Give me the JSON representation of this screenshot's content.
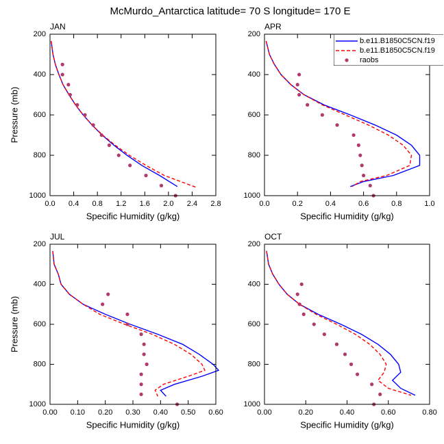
{
  "title": "McMurdo_Antarctica  latitude= 70 S longitude= 170 E",
  "chart_data": [
    {
      "type": "line",
      "title": "JAN",
      "x_label": "Specific Humidity (g/kg)",
      "y_label": "Pressure (mb)",
      "xlim": [
        0,
        2.8
      ],
      "xticks": [
        {
          "value": 0,
          "label": "0.0"
        },
        0.4,
        0.8,
        {
          "value": 1.2,
          "label": "1.2"
        },
        {
          "value": 1.6,
          "label": "1.6"
        },
        {
          "value": 2.0,
          "label": "2.0"
        },
        2.4,
        2.8
      ],
      "ylim": [
        200,
        1000
      ],
      "yticks": [
        200,
        400,
        600,
        800,
        1000
      ],
      "y_reversed": true,
      "series": [
        {
          "color": "#0000ff",
          "dash": "solid",
          "values": [
            0.02,
            0.05,
            0.09,
            0.15,
            0.22,
            0.32,
            0.43,
            0.56,
            0.71,
            0.88,
            1.08,
            1.3,
            1.55,
            1.85,
            2.15
          ],
          "pressure": [
            234,
            300,
            350,
            400,
            450,
            500,
            550,
            600,
            650,
            700,
            750,
            800,
            850,
            900,
            955
          ]
        },
        {
          "color": "#ff0000",
          "dash": "dashed",
          "values": [
            0.02,
            0.05,
            0.09,
            0.15,
            0.22,
            0.32,
            0.43,
            0.56,
            0.71,
            0.89,
            1.1,
            1.34,
            1.62,
            1.93,
            2.48
          ],
          "pressure": [
            234,
            300,
            350,
            400,
            450,
            500,
            550,
            600,
            650,
            700,
            750,
            800,
            850,
            900,
            960
          ]
        },
        {
          "color": "#b03a6e",
          "marker": "dot",
          "values": [
            0.21,
            0.21,
            0.31,
            0.34,
            0.46,
            0.59,
            0.73,
            0.87,
            1.0,
            1.16,
            1.35,
            1.62,
            1.88,
            2.12
          ],
          "pressure": [
            350,
            400,
            450,
            500,
            550,
            600,
            650,
            700,
            750,
            800,
            850,
            900,
            950,
            1000
          ]
        }
      ]
    },
    {
      "type": "line",
      "title": "APR",
      "x_label": "Specific Humidity (g/kg)",
      "xlim": [
        0,
        1.0
      ],
      "xticks": [
        {
          "value": 0,
          "label": "0.0"
        },
        0.2,
        0.4,
        0.6,
        0.8,
        {
          "value": 1.0,
          "label": "1.0"
        }
      ],
      "ylim": [
        200,
        1000
      ],
      "yticks": [
        200,
        400,
        600,
        800,
        1000
      ],
      "y_reversed": true,
      "legend": "upper right",
      "series": [
        {
          "name": "b.e11.B1850C5CN.f19",
          "color": "#0000ff",
          "dash": "solid",
          "values": [
            0.01,
            0.03,
            0.06,
            0.1,
            0.16,
            0.24,
            0.36,
            0.52,
            0.67,
            0.8,
            0.89,
            0.94,
            0.94,
            0.78,
            0.6,
            0.52
          ],
          "pressure": [
            234,
            300,
            350,
            400,
            450,
            500,
            550,
            600,
            650,
            700,
            750,
            800,
            850,
            900,
            930,
            955
          ]
        },
        {
          "name": "b.e11.B1850C5CN.f19",
          "color": "#ff0000",
          "dash": "dashed",
          "values": [
            0.01,
            0.03,
            0.06,
            0.1,
            0.16,
            0.24,
            0.35,
            0.49,
            0.63,
            0.75,
            0.84,
            0.89,
            0.88,
            0.74,
            0.58,
            0.53
          ],
          "pressure": [
            234,
            300,
            350,
            400,
            450,
            500,
            550,
            600,
            650,
            700,
            750,
            800,
            850,
            900,
            930,
            955
          ]
        },
        {
          "name": "raobs",
          "color": "#b03a6e",
          "marker": "dot",
          "values": [
            0.21,
            0.2,
            0.21,
            0.26,
            0.35,
            0.44,
            0.54,
            0.57,
            0.58,
            0.59,
            0.6,
            0.64,
            0.66
          ],
          "pressure": [
            400,
            450,
            500,
            550,
            600,
            650,
            700,
            750,
            800,
            850,
            900,
            950,
            1000
          ]
        }
      ]
    },
    {
      "type": "line",
      "title": "JUL",
      "x_label": "Specific Humidity (g/kg)",
      "y_label": "Pressure (mb)",
      "xlim": [
        0,
        0.6
      ],
      "xticks": [
        {
          "value": 0,
          "label": "0.00"
        },
        {
          "value": 0.1,
          "label": "0.10"
        },
        {
          "value": 0.2,
          "label": "0.20"
        },
        {
          "value": 0.3,
          "label": "0.30"
        },
        {
          "value": 0.4,
          "label": "0.40"
        },
        {
          "value": 0.5,
          "label": "0.50"
        },
        {
          "value": 0.6,
          "label": "0.60"
        }
      ],
      "ylim": [
        200,
        1000
      ],
      "yticks": [
        200,
        400,
        600,
        800,
        1000
      ],
      "y_reversed": true,
      "series": [
        {
          "color": "#0000ff",
          "dash": "solid",
          "values": [
            0.01,
            0.015,
            0.03,
            0.04,
            0.07,
            0.12,
            0.2,
            0.29,
            0.39,
            0.48,
            0.54,
            0.59,
            0.61,
            0.55,
            0.45,
            0.4,
            0.42
          ],
          "pressure": [
            234,
            300,
            350,
            400,
            450,
            500,
            550,
            600,
            650,
            700,
            750,
            800,
            830,
            860,
            900,
            930,
            960
          ]
        },
        {
          "color": "#ff0000",
          "dash": "dashed",
          "values": [
            0.01,
            0.015,
            0.03,
            0.04,
            0.07,
            0.12,
            0.18,
            0.27,
            0.37,
            0.45,
            0.51,
            0.55,
            0.56,
            0.5,
            0.41,
            0.38,
            0.39
          ],
          "pressure": [
            234,
            300,
            350,
            400,
            450,
            500,
            550,
            600,
            650,
            700,
            750,
            800,
            830,
            860,
            900,
            930,
            960
          ]
        },
        {
          "color": "#b03a6e",
          "marker": "dot",
          "values": [
            0.21,
            0.19,
            0.28,
            0.28,
            0.33,
            0.34,
            0.34,
            0.35,
            0.33,
            0.33,
            0.33,
            0.46
          ],
          "pressure": [
            450,
            500,
            550,
            600,
            650,
            700,
            750,
            800,
            850,
            900,
            950,
            1000
          ]
        }
      ]
    },
    {
      "type": "line",
      "title": "OCT",
      "x_label": "Specific Humidity (g/kg)",
      "xlim": [
        0,
        0.8
      ],
      "xticks": [
        {
          "value": 0,
          "label": "0.00"
        },
        {
          "value": 0.2,
          "label": "0.20"
        },
        {
          "value": 0.4,
          "label": "0.40"
        },
        {
          "value": 0.6,
          "label": "0.60"
        },
        {
          "value": 0.8,
          "label": "0.80"
        }
      ],
      "ylim": [
        200,
        1000
      ],
      "yticks": [
        200,
        400,
        600,
        800,
        1000
      ],
      "y_reversed": true,
      "series": [
        {
          "color": "#0000ff",
          "dash": "solid",
          "values": [
            0.01,
            0.02,
            0.04,
            0.07,
            0.11,
            0.17,
            0.26,
            0.37,
            0.47,
            0.55,
            0.61,
            0.65,
            0.66,
            0.62,
            0.66,
            0.73
          ],
          "pressure": [
            234,
            300,
            350,
            400,
            450,
            500,
            550,
            600,
            650,
            700,
            750,
            800,
            840,
            880,
            920,
            955
          ]
        },
        {
          "color": "#ff0000",
          "dash": "dashed",
          "values": [
            0.01,
            0.02,
            0.04,
            0.07,
            0.11,
            0.17,
            0.25,
            0.35,
            0.44,
            0.51,
            0.56,
            0.59,
            0.58,
            0.55,
            0.6,
            0.71
          ],
          "pressure": [
            234,
            300,
            350,
            400,
            450,
            500,
            550,
            600,
            650,
            700,
            750,
            800,
            840,
            880,
            920,
            955
          ]
        },
        {
          "color": "#b03a6e",
          "marker": "dot",
          "values": [
            0.18,
            0.16,
            0.17,
            0.19,
            0.24,
            0.29,
            0.35,
            0.39,
            0.42,
            0.45,
            0.52,
            0.56,
            0.53
          ],
          "pressure": [
            400,
            450,
            500,
            550,
            600,
            650,
            700,
            750,
            800,
            850,
            900,
            950,
            1000
          ]
        }
      ]
    }
  ]
}
